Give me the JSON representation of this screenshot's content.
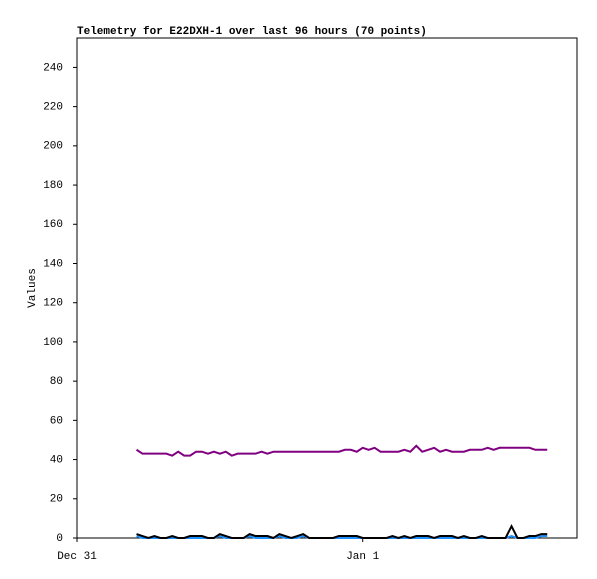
{
  "chart_data": {
    "type": "line",
    "title": "Telemetry for E22DXH-1 over last 96 hours (70 points)",
    "y_label": "Values",
    "xlim": [
      0,
      42
    ],
    "ylim": [
      0,
      255
    ],
    "xticks": [
      {
        "value": 0,
        "label": "Dec 31"
      },
      {
        "value": 24,
        "label": "Jan 1"
      }
    ],
    "yticks": [
      0,
      20,
      40,
      60,
      80,
      100,
      120,
      140,
      160,
      180,
      200,
      220,
      240
    ],
    "x": [
      5,
      5.5,
      6,
      6.5,
      7,
      7.5,
      8,
      8.5,
      9,
      9.5,
      10,
      10.5,
      11,
      11.5,
      12,
      12.5,
      13,
      13.5,
      14,
      14.5,
      15,
      15.5,
      16,
      16.5,
      17,
      17.5,
      18,
      18.5,
      19,
      19.5,
      20,
      20.5,
      21,
      21.5,
      22,
      22.5,
      23,
      23.5,
      24,
      24.5,
      25,
      25.5,
      26,
      26.5,
      27,
      27.5,
      28,
      28.5,
      29,
      29.5,
      30,
      30.5,
      31,
      31.5,
      32,
      32.5,
      33,
      33.5,
      34,
      34.5,
      35,
      35.5,
      36,
      36.5,
      37,
      37.5,
      38,
      38.5,
      39,
      39.5
    ],
    "series": [
      {
        "color": "#800080",
        "values": [
          45,
          43,
          43,
          43,
          43,
          43,
          42,
          44,
          42,
          42,
          44,
          44,
          43,
          44,
          43,
          44,
          42,
          43,
          43,
          43,
          43,
          44,
          43,
          44,
          44,
          44,
          44,
          44,
          44,
          44,
          44,
          44,
          44,
          44,
          44,
          45,
          45,
          44,
          46,
          45,
          46,
          44,
          44,
          44,
          44,
          45,
          44,
          47,
          44,
          45,
          46,
          44,
          45,
          44,
          44,
          44,
          45,
          45,
          45,
          46,
          45,
          46,
          46,
          46,
          46,
          46,
          46,
          45,
          45,
          45
        ]
      },
      {
        "color": "#1e90ff",
        "values": [
          1,
          0,
          0,
          0,
          0,
          0,
          0,
          0,
          0,
          0,
          0,
          0,
          0,
          0,
          1,
          0,
          0,
          0,
          0,
          1,
          0,
          0,
          0,
          0,
          1,
          0,
          0,
          0,
          1,
          0,
          0,
          0,
          0,
          0,
          0,
          0,
          0,
          0,
          0,
          0,
          0,
          0,
          0,
          0,
          0,
          0,
          0,
          0,
          0,
          0,
          0,
          0,
          0,
          0,
          0,
          0,
          0,
          0,
          0,
          0,
          0,
          0,
          0,
          1,
          0,
          0,
          0,
          0,
          1,
          1
        ]
      },
      {
        "color": "#000000",
        "values": [
          2,
          1,
          0,
          1,
          0,
          0,
          1,
          0,
          0,
          1,
          1,
          1,
          0,
          0,
          2,
          1,
          0,
          0,
          0,
          2,
          1,
          1,
          1,
          0,
          2,
          1,
          0,
          1,
          2,
          0,
          0,
          0,
          0,
          0,
          1,
          1,
          1,
          1,
          0,
          0,
          0,
          0,
          0,
          1,
          0,
          1,
          0,
          1,
          1,
          1,
          0,
          1,
          1,
          1,
          0,
          1,
          0,
          0,
          1,
          0,
          0,
          0,
          0,
          6,
          0,
          0,
          1,
          1,
          2,
          2
        ]
      }
    ]
  }
}
